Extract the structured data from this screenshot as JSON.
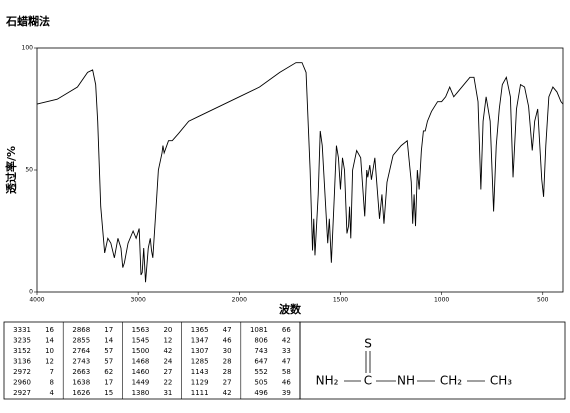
{
  "title": "石蜡糊法",
  "chart_data": {
    "type": "line",
    "color": "#000000",
    "x_label": "波数",
    "y_label": "透过率/%",
    "xlim": [
      4000,
      400
    ],
    "xticks": [
      4000,
      3000,
      2000,
      1500,
      1000,
      500
    ],
    "ylim": [
      0,
      100
    ],
    "yticks": [
      0,
      50,
      100
    ],
    "x": [
      4000,
      3800,
      3600,
      3500,
      3450,
      3420,
      3400,
      3370,
      3331,
      3300,
      3270,
      3235,
      3200,
      3170,
      3152,
      3136,
      3100,
      3050,
      3020,
      2990,
      2972,
      2960,
      2945,
      2927,
      2900,
      2880,
      2868,
      2855,
      2830,
      2800,
      2764,
      2755,
      2743,
      2700,
      2663,
      2600,
      2500,
      2400,
      2300,
      2200,
      2100,
      2000,
      1900,
      1800,
      1720,
      1690,
      1670,
      1650,
      1638,
      1632,
      1626,
      1610,
      1600,
      1590,
      1563,
      1555,
      1545,
      1530,
      1520,
      1510,
      1500,
      1490,
      1480,
      1468,
      1460,
      1455,
      1449,
      1440,
      1420,
      1400,
      1380,
      1370,
      1365,
      1355,
      1347,
      1330,
      1307,
      1295,
      1285,
      1270,
      1240,
      1200,
      1170,
      1150,
      1143,
      1136,
      1129,
      1120,
      1111,
      1100,
      1090,
      1081,
      1070,
      1050,
      1020,
      1000,
      980,
      960,
      940,
      920,
      900,
      880,
      860,
      840,
      820,
      806,
      795,
      780,
      760,
      743,
      730,
      715,
      700,
      680,
      660,
      647,
      630,
      610,
      590,
      570,
      552,
      540,
      525,
      505,
      496,
      485,
      470,
      450,
      430,
      410,
      400
    ],
    "values": [
      77,
      79,
      84,
      90,
      91,
      85,
      70,
      35,
      16,
      22,
      20,
      14,
      22,
      18,
      10,
      12,
      20,
      25,
      22,
      26,
      7,
      8,
      18,
      4,
      18,
      22,
      17,
      14,
      30,
      50,
      57,
      60,
      57,
      62,
      62,
      65,
      70,
      72,
      74,
      76,
      78,
      80,
      84,
      90,
      94,
      94,
      90,
      50,
      17,
      30,
      15,
      40,
      66,
      60,
      20,
      30,
      12,
      40,
      60,
      55,
      42,
      55,
      50,
      24,
      27,
      35,
      22,
      50,
      58,
      55,
      31,
      50,
      47,
      52,
      46,
      55,
      30,
      40,
      28,
      45,
      56,
      60,
      62,
      45,
      28,
      40,
      27,
      50,
      42,
      58,
      66,
      66,
      70,
      74,
      78,
      78,
      80,
      84,
      80,
      82,
      84,
      86,
      88,
      88,
      78,
      42,
      70,
      80,
      70,
      33,
      60,
      75,
      85,
      88,
      80,
      47,
      75,
      85,
      84,
      76,
      58,
      70,
      75,
      46,
      39,
      60,
      80,
      84,
      82,
      78,
      77
    ]
  },
  "peak_table": {
    "rows": [
      [
        "3331",
        "16",
        "2868",
        "17",
        "1563",
        "20",
        "1365",
        "47",
        "1081",
        "66"
      ],
      [
        "3235",
        "14",
        "2855",
        "14",
        "1545",
        "12",
        "1347",
        "46",
        "806",
        "42"
      ],
      [
        "3152",
        "10",
        "2764",
        "57",
        "1500",
        "42",
        "1307",
        "30",
        "743",
        "33"
      ],
      [
        "3136",
        "12",
        "2743",
        "57",
        "1468",
        "24",
        "1285",
        "28",
        "647",
        "47"
      ],
      [
        "2972",
        "7",
        "2663",
        "62",
        "1460",
        "27",
        "1143",
        "28",
        "552",
        "58"
      ],
      [
        "2960",
        "8",
        "1638",
        "17",
        "1449",
        "22",
        "1129",
        "27",
        "505",
        "46"
      ],
      [
        "2927",
        "4",
        "1626",
        "15",
        "1380",
        "31",
        "1111",
        "42",
        "496",
        "39"
      ]
    ]
  },
  "structure": {
    "top": "S",
    "chain": [
      "NH₂",
      "C",
      "NH",
      "CH₂",
      "CH₃"
    ]
  }
}
